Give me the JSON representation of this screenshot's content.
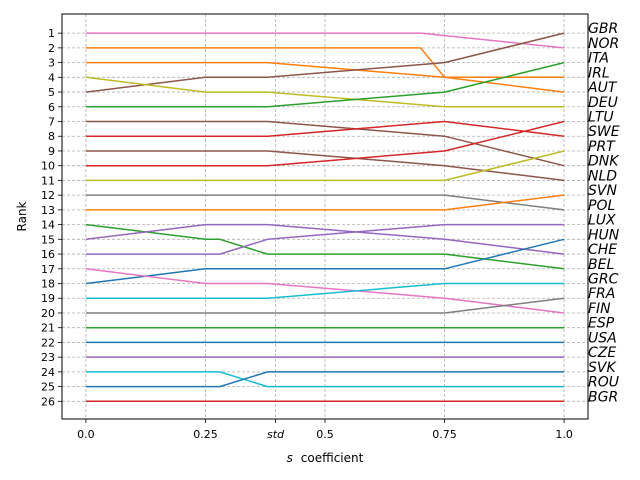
{
  "chart_data": {
    "type": "line",
    "title": "",
    "xlabel_prefix": "s",
    "xlabel_suffix": "coefficient",
    "ylabel": "Rank",
    "xlim": [
      -0.05,
      1.05
    ],
    "ylim": [
      27.2,
      -0.3
    ],
    "x_ticks": [
      {
        "value": 0.0,
        "label": "0.0"
      },
      {
        "value": 0.25,
        "label": "0.25"
      },
      {
        "value": 0.3966,
        "label": "std"
      },
      {
        "value": 0.5,
        "label": "0.5"
      },
      {
        "value": 0.75,
        "label": "0.75"
      },
      {
        "value": 1.0,
        "label": "1.0"
      }
    ],
    "y_ticks": [
      1,
      2,
      3,
      4,
      5,
      6,
      7,
      8,
      9,
      10,
      11,
      12,
      13,
      14,
      15,
      16,
      17,
      18,
      19,
      20,
      21,
      22,
      23,
      24,
      25,
      26
    ],
    "grid": true,
    "end_labels": [
      "GBR",
      "NOR",
      "ITA",
      "IRL",
      "AUT",
      "DEU",
      "LTU",
      "SWE",
      "PRT",
      "DNK",
      "NLD",
      "SVN",
      "POL",
      "LUX",
      "HUN",
      "CHE",
      "BEL",
      "GRC",
      "FRA",
      "FIN",
      "ESP",
      "USA",
      "CZE",
      "SVK",
      "ROU",
      "BGR"
    ],
    "series": [
      {
        "color": "#e377c2",
        "x": [
          0,
          0.7,
          1.0
        ],
        "y": [
          1,
          1,
          2
        ]
      },
      {
        "color": "#ff7f0e",
        "x": [
          0,
          0.7,
          0.75,
          1.0
        ],
        "y": [
          2,
          2,
          4,
          4
        ]
      },
      {
        "color": "#ff7f0e",
        "x": [
          0,
          0.38,
          0.75,
          1.0
        ],
        "y": [
          3,
          3,
          4,
          5
        ]
      },
      {
        "color": "#8c564b",
        "x": [
          0,
          0.25,
          0.38,
          0.75,
          1.0
        ],
        "y": [
          5,
          4,
          4,
          3,
          1
        ]
      },
      {
        "color": "#bcbd22",
        "x": [
          0,
          0.25,
          0.38,
          0.75,
          1.0
        ],
        "y": [
          4,
          5,
          5,
          6,
          6
        ]
      },
      {
        "color": "#2ca02c",
        "x": [
          0,
          0.38,
          0.75,
          1.0
        ],
        "y": [
          6,
          6,
          5,
          3
        ]
      },
      {
        "color": "#8c564b",
        "x": [
          0,
          0.38,
          0.75,
          1.0
        ],
        "y": [
          7,
          7,
          8,
          10
        ]
      },
      {
        "color": "#d62728",
        "x": [
          0,
          0.38,
          0.75,
          1.0
        ],
        "y": [
          8,
          8,
          7,
          8
        ]
      },
      {
        "color": "#8c564b",
        "x": [
          0,
          0.38,
          0.75,
          1.0
        ],
        "y": [
          9,
          9,
          10,
          11
        ]
      },
      {
        "color": "#d62728",
        "x": [
          0,
          0.38,
          0.75,
          1.0
        ],
        "y": [
          10,
          10,
          9,
          7
        ]
      },
      {
        "color": "#bcbd22",
        "x": [
          0,
          0.75,
          1.0
        ],
        "y": [
          11,
          11,
          9
        ]
      },
      {
        "color": "#7f7f7f",
        "x": [
          0,
          0.75,
          1.0
        ],
        "y": [
          12,
          12,
          13
        ]
      },
      {
        "color": "#ff7f0e",
        "x": [
          0,
          0.75,
          1.0
        ],
        "y": [
          13,
          13,
          12
        ]
      },
      {
        "color": "#2ca02c",
        "x": [
          0,
          0.25,
          0.28,
          0.38,
          0.75,
          1.0
        ],
        "y": [
          14,
          15,
          15,
          16,
          16,
          17
        ]
      },
      {
        "color": "#9467bd",
        "x": [
          0,
          0.25,
          0.38,
          0.75,
          1.0
        ],
        "y": [
          15,
          14,
          14,
          15,
          16
        ]
      },
      {
        "color": "#9467bd",
        "x": [
          0,
          0.28,
          0.38,
          0.75,
          1.0
        ],
        "y": [
          16,
          16,
          15,
          14,
          14
        ]
      },
      {
        "color": "#1f77b4",
        "x": [
          0,
          0.25,
          0.75,
          1.0
        ],
        "y": [
          18,
          17,
          17,
          15
        ]
      },
      {
        "color": "#e377c2",
        "x": [
          0,
          0.25,
          0.38,
          0.75,
          1.0
        ],
        "y": [
          17,
          18,
          18,
          19,
          20
        ]
      },
      {
        "color": "#17becf",
        "x": [
          0,
          0.38,
          0.75,
          1.0
        ],
        "y": [
          19,
          19,
          18,
          18
        ]
      },
      {
        "color": "#7f7f7f",
        "x": [
          0,
          0.75,
          1.0
        ],
        "y": [
          20,
          20,
          19
        ]
      },
      {
        "color": "#2ca02c",
        "x": [
          0,
          1.0
        ],
        "y": [
          21,
          21
        ]
      },
      {
        "color": "#1f77b4",
        "x": [
          0,
          1.0
        ],
        "y": [
          22,
          22
        ]
      },
      {
        "color": "#9467bd",
        "x": [
          0,
          1.0
        ],
        "y": [
          23,
          23
        ]
      },
      {
        "color": "#17becf",
        "x": [
          0,
          0.28,
          0.38,
          1.0
        ],
        "y": [
          24,
          24,
          25,
          25
        ]
      },
      {
        "color": "#1f77b4",
        "x": [
          0,
          0.28,
          0.38,
          1.0
        ],
        "y": [
          25,
          25,
          24,
          24
        ]
      },
      {
        "color": "#d62728",
        "x": [
          0,
          1.0
        ],
        "y": [
          26,
          26
        ]
      }
    ]
  }
}
